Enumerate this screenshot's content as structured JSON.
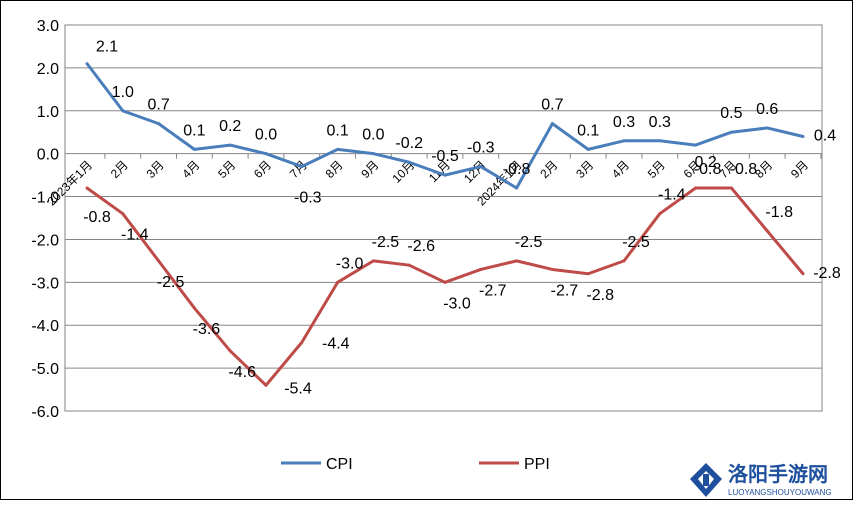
{
  "chart_data": {
    "type": "line",
    "title": "",
    "xlabel": "",
    "ylabel": "",
    "ylim": [
      -6.0,
      3.0
    ],
    "yticks": [
      "3.0",
      "2.0",
      "1.0",
      "0.0",
      "-1.0",
      "-2.0",
      "-3.0",
      "-4.0",
      "-5.0",
      "-6.0"
    ],
    "categories": [
      "2023年1月",
      "2月",
      "3月",
      "4月",
      "5月",
      "6月",
      "7月",
      "8月",
      "9月",
      "10月",
      "11月",
      "12月",
      "2024年1月",
      "2月",
      "3月",
      "4月",
      "5月",
      "6月",
      "7月",
      "8月",
      "9月"
    ],
    "grid": true,
    "legend_position": "bottom",
    "series": [
      {
        "name": "CPI",
        "color": "#4a7ebb",
        "values": [
          2.1,
          1.0,
          0.7,
          0.1,
          0.2,
          0.0,
          -0.3,
          0.1,
          0.0,
          -0.2,
          -0.5,
          -0.3,
          -0.8,
          0.7,
          0.1,
          0.3,
          0.3,
          0.2,
          0.5,
          0.6,
          0.4
        ],
        "labels": [
          "2.1",
          "1.0",
          "0.7",
          "0.1",
          "0.2",
          "0.0",
          "-0.3",
          "0.1",
          "0.0",
          "-0.2",
          "-0.5",
          "-0.3",
          "-0.8",
          "0.7",
          "0.1",
          "0.3",
          "0.3",
          "0.2",
          "0.5",
          "0.6",
          "0.4"
        ]
      },
      {
        "name": "PPI",
        "color": "#be4b48",
        "values": [
          -0.8,
          -1.4,
          -2.5,
          -3.6,
          -4.6,
          -5.4,
          -4.4,
          -3.0,
          -2.5,
          -2.6,
          -3.0,
          -2.7,
          -2.5,
          -2.7,
          -2.8,
          -2.5,
          -1.4,
          -0.8,
          -0.8,
          -1.8,
          -2.8
        ],
        "labels": [
          "-0.8",
          "-1.4",
          "-2.5",
          "-3.6",
          "-4.6",
          "-5.4",
          "-4.4",
          "-3.0",
          "-2.5",
          "-2.6",
          "-3.0",
          "-2.7",
          "-2.5",
          "-2.7",
          "-2.8",
          "-2.5",
          "-1.4",
          "-0.8",
          "-0.8",
          "-1.8",
          "-2.8"
        ]
      }
    ]
  },
  "watermark": {
    "text": "洛阳手游网",
    "subtext": "LUOYANGSHOUYOUWANG"
  }
}
